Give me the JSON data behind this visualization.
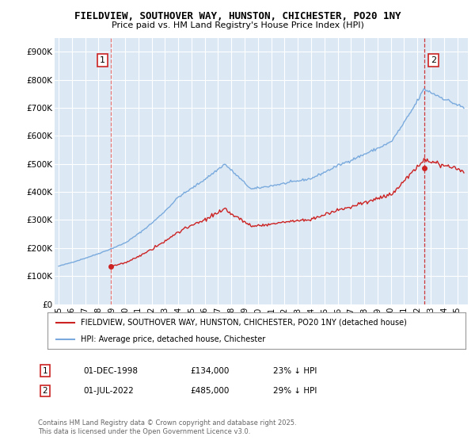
{
  "title_line1": "FIELDVIEW, SOUTHOVER WAY, HUNSTON, CHICHESTER, PO20 1NY",
  "title_line2": "Price paid vs. HM Land Registry's House Price Index (HPI)",
  "bg_color": "#ffffff",
  "plot_bg_color": "#dce9f5",
  "grid_color": "#ffffff",
  "hpi_color": "#7aaadd",
  "sale_color": "#cc2222",
  "vline1_color": "#dd6666",
  "vline2_color": "#cc2222",
  "ylim": [
    0,
    950000
  ],
  "yticks": [
    0,
    100000,
    200000,
    300000,
    400000,
    500000,
    600000,
    700000,
    800000,
    900000
  ],
  "ytick_labels": [
    "£0",
    "£100K",
    "£200K",
    "£300K",
    "£400K",
    "£500K",
    "£600K",
    "£700K",
    "£800K",
    "£900K"
  ],
  "legend_sale_label": "FIELDVIEW, SOUTHOVER WAY, HUNSTON, CHICHESTER, PO20 1NY (detached house)",
  "legend_hpi_label": "HPI: Average price, detached house, Chichester",
  "footnote": "Contains HM Land Registry data © Crown copyright and database right 2025.\nThis data is licensed under the Open Government Licence v3.0.",
  "sale1_date": "01-DEC-1998",
  "sale1_price": "£134,000",
  "sale1_note": "23% ↓ HPI",
  "sale2_date": "01-JUL-2022",
  "sale2_price": "£485,000",
  "sale2_note": "29% ↓ HPI",
  "sale1_x": 1998.92,
  "sale1_y": 134000,
  "sale2_x": 2022.5,
  "sale2_y": 485000,
  "xtick_years": [
    1995,
    1996,
    1997,
    1998,
    1999,
    2000,
    2001,
    2002,
    2003,
    2004,
    2005,
    2006,
    2007,
    2008,
    2009,
    2010,
    2011,
    2012,
    2013,
    2014,
    2015,
    2016,
    2017,
    2018,
    2019,
    2020,
    2021,
    2022,
    2023,
    2024,
    2025
  ]
}
